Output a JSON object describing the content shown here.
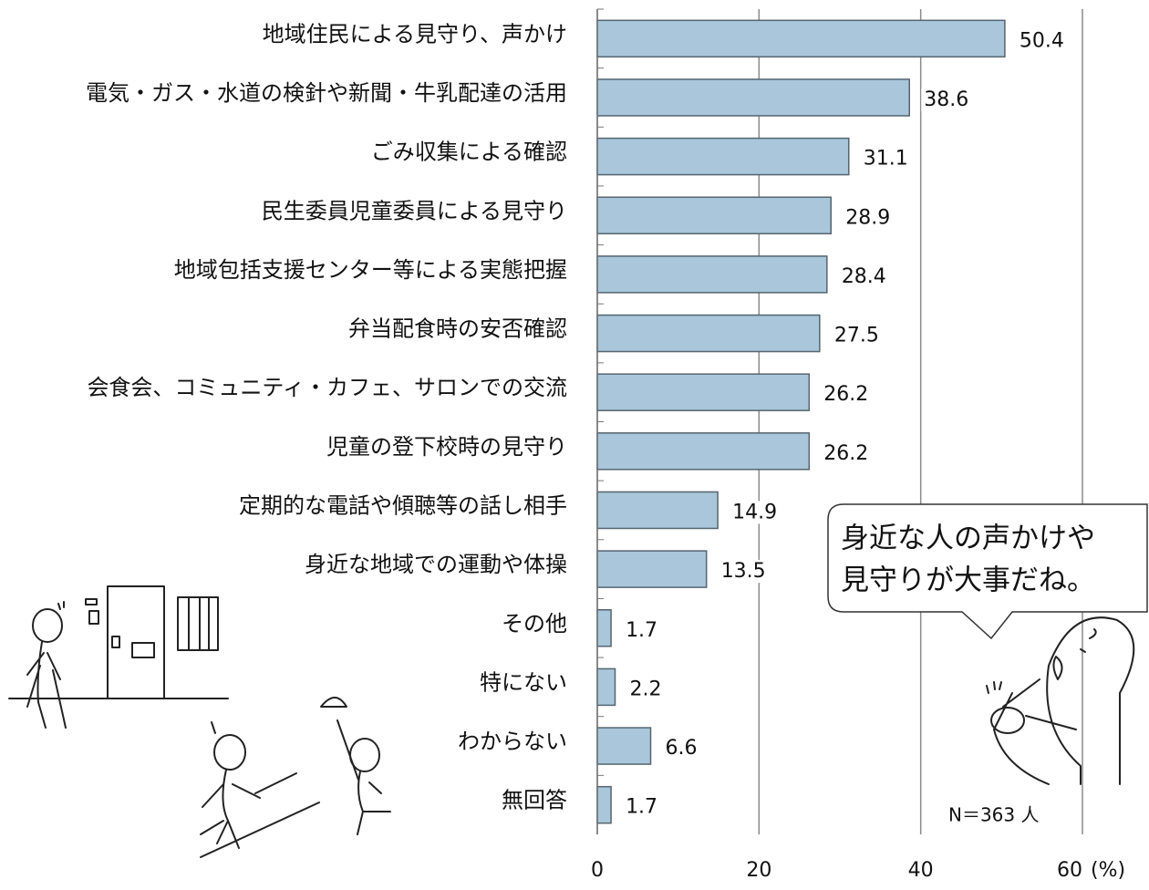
{
  "chart_data": {
    "type": "hbar",
    "categories": [
      "地域住民による見守り、声かけ",
      "電気・ガス・水道の検針や新聞・牛乳配達の活用",
      "ごみ収集による確認",
      "民生委員児童委員による見守り",
      "地域包括支援センター等による実態把握",
      "弁当配食時の安否確認",
      "会食会、コミュニティ・カフェ、サロンでの交流",
      "児童の登下校時の見守り",
      "定期的な電話や傾聴等の話し相手",
      "身近な地域での運動や体操",
      "その他",
      "特にない",
      "わからない",
      "無回答"
    ],
    "values": [
      50.4,
      38.6,
      31.1,
      28.9,
      28.4,
      27.5,
      26.2,
      26.2,
      14.9,
      13.5,
      1.7,
      2.2,
      6.6,
      1.7
    ],
    "color": "#a9c6da",
    "xlim": [
      0,
      60
    ],
    "xticks": [
      0,
      20,
      40,
      60
    ],
    "x_label": "(%)",
    "grid": true,
    "annotation": "N＝363 人",
    "speech_bubble": [
      "身近な人の声かけや",
      "見守りが大事だね。"
    ]
  }
}
